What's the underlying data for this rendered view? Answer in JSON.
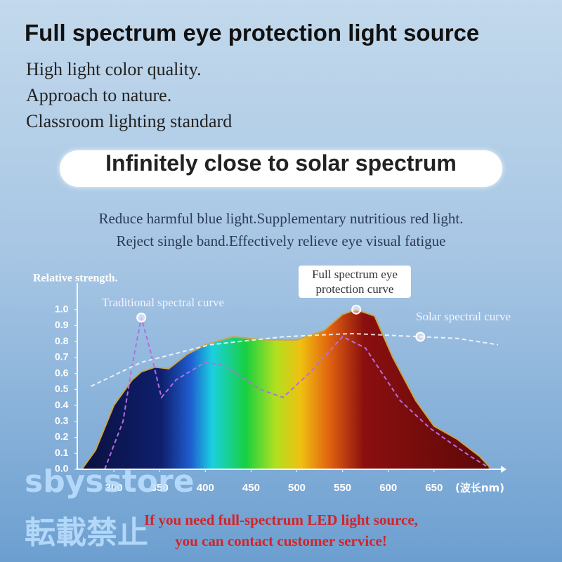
{
  "header": {
    "title": "Full spectrum eye protection light source",
    "lines": [
      "High light color quality.",
      "Approach to nature.",
      "Classroom lighting standard"
    ]
  },
  "badge": "Infinitely close to solar spectrum",
  "description": [
    "Reduce harmful blue light.Supplementary nutritious red light.",
    "Reject single band.Effectively relieve eye visual fatigue"
  ],
  "chart_data": {
    "type": "area",
    "ylabel": "Relative strength.",
    "xlabel": "(波长nm)",
    "xlim": [
      260,
      720
    ],
    "ylim": [
      0,
      1.1
    ],
    "xticks": [
      300,
      350,
      400,
      450,
      500,
      550,
      600,
      650
    ],
    "yticks": [
      {
        "value": 0,
        "label": "0.0"
      },
      0.1,
      0.2,
      0.3,
      0.4,
      0.5,
      0.6,
      0.7,
      0.8,
      0.9,
      {
        "value": 1,
        "label": "1.0"
      }
    ],
    "series": [
      {
        "name": "Full spectrum eye protection curve",
        "color": "#c9a54a",
        "x": [
          265,
          280,
          300,
          320,
          330,
          345,
          360,
          380,
          400,
          430,
          465,
          500,
          530,
          550,
          565,
          585,
          605,
          630,
          650,
          675,
          700,
          713
        ],
        "values": [
          0,
          0.12,
          0.4,
          0.56,
          0.61,
          0.64,
          0.63,
          0.72,
          0.78,
          0.83,
          0.81,
          0.81,
          0.87,
          0.97,
          1.0,
          0.96,
          0.7,
          0.43,
          0.27,
          0.19,
          0.08,
          0
        ]
      },
      {
        "name": "Traditional spectral curve",
        "color": "#b070e0",
        "x": [
          290,
          310,
          320,
          330,
          340,
          352,
          368,
          400,
          420,
          460,
          485,
          515,
          550,
          575,
          613,
          645,
          667,
          690,
          713
        ],
        "values": [
          0,
          0.3,
          0.65,
          0.95,
          0.74,
          0.45,
          0.56,
          0.67,
          0.65,
          0.5,
          0.45,
          0.61,
          0.83,
          0.76,
          0.43,
          0.26,
          0.17,
          0.08,
          0
        ]
      },
      {
        "name": "Solar spectral curve",
        "color": "#ffffff",
        "x": [
          275,
          330,
          405,
          485,
          560,
          635,
          675,
          720
        ],
        "values": [
          0.52,
          0.67,
          0.78,
          0.83,
          0.85,
          0.83,
          0.82,
          0.78
        ]
      }
    ]
  },
  "watermark": [
    "sbysstore",
    "転載禁止"
  ],
  "footer": [
    "If you need full-spectrum LED light source,",
    "you can contact customer service!"
  ]
}
